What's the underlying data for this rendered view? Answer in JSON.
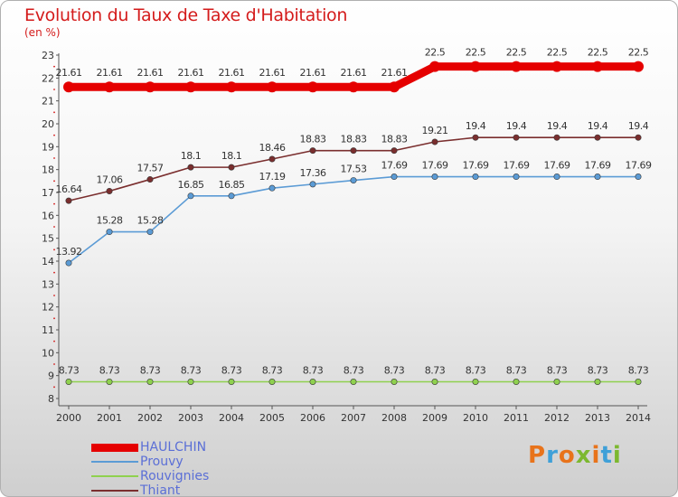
{
  "header": {
    "title": "Evolution du Taux de Taxe d'Habitation",
    "subtitle": "(en %)"
  },
  "logo_text": "Proxiti",
  "logo_colors": [
    "#e8731b",
    "#3fa0d8",
    "#e8731b",
    "#7cb82f",
    "#e8731b",
    "#3fa0d8",
    "#7cb82f"
  ],
  "chart_data": {
    "type": "line",
    "x": [
      "2000",
      "2001",
      "2002",
      "2003",
      "2004",
      "2005",
      "2006",
      "2007",
      "2008",
      "2009",
      "2010",
      "2011",
      "2012",
      "2013",
      "2014"
    ],
    "ylim": [
      8,
      23
    ],
    "yticks": [
      "8",
      "9",
      "10",
      "11",
      "12",
      "13",
      "14",
      "15",
      "16",
      "17",
      "18",
      "19",
      "20",
      "21",
      "22",
      "23"
    ],
    "grid": false,
    "legend_position": "bottom-left",
    "series": [
      {
        "name": "HAULCHIN",
        "color": "#e50000",
        "values": [
          21.61,
          21.61,
          21.61,
          21.61,
          21.61,
          21.61,
          21.61,
          21.61,
          21.61,
          22.5,
          22.5,
          22.5,
          22.5,
          22.5,
          22.5
        ],
        "labels": [
          "21.61",
          "21.61",
          "21.61",
          "21.61",
          "21.61",
          "21.61",
          "21.61",
          "21.61",
          "21.61",
          "22.5",
          "22.5",
          "22.5",
          "22.5",
          "22.5",
          "22.5"
        ]
      },
      {
        "name": "Prouvy",
        "color": "#5b9bd5",
        "values": [
          13.92,
          15.28,
          15.28,
          16.85,
          16.85,
          17.19,
          17.36,
          17.53,
          17.69,
          17.69,
          17.69,
          17.69,
          17.69,
          17.69,
          17.69
        ],
        "labels": [
          "13.92",
          "15.28",
          "15.28",
          "16.85",
          "16.85",
          "17.19",
          "17.36",
          "17.53",
          "17.69",
          "17.69",
          "17.69",
          "17.69",
          "17.69",
          "17.69",
          "17.69"
        ]
      },
      {
        "name": "Rouvignies",
        "color": "#8fd14f",
        "values": [
          8.73,
          8.73,
          8.73,
          8.73,
          8.73,
          8.73,
          8.73,
          8.73,
          8.73,
          8.73,
          8.73,
          8.73,
          8.73,
          8.73,
          8.73
        ],
        "labels": [
          "8.73",
          "8.73",
          "8.73",
          "8.73",
          "8.73",
          "8.73",
          "8.73",
          "8.73",
          "8.73",
          "8.73",
          "8.73",
          "8.73",
          "8.73",
          "8.73",
          "8.73"
        ]
      },
      {
        "name": "Thiant",
        "color": "#7a2e2e",
        "values": [
          16.64,
          17.06,
          17.57,
          18.1,
          18.1,
          18.46,
          18.83,
          18.83,
          18.83,
          19.21,
          19.4,
          19.4,
          19.4,
          19.4,
          19.4
        ],
        "labels": [
          "16.64",
          "17.06",
          "17.57",
          "18.1",
          "18.1",
          "18.46",
          "18.83",
          "18.83",
          "18.83",
          "19.21",
          "19.4",
          "19.4",
          "19.4",
          "19.4",
          "19.4"
        ]
      }
    ]
  }
}
